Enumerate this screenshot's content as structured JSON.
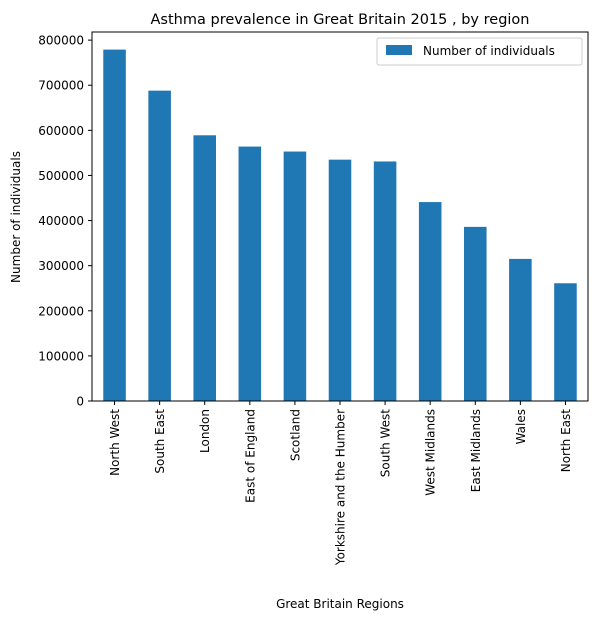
{
  "chart_data": {
    "type": "bar",
    "title": "Asthma prevalence in Great Britain 2015 , by region",
    "xlabel": "Great Britain Regions",
    "ylabel": "Number of individuals",
    "categories": [
      "North West",
      "South East",
      "London",
      "East of England",
      "Scotland",
      "Yorkshire and the Humber",
      "South West",
      "West Midlands",
      "East Midlands",
      "Wales",
      "North East"
    ],
    "series": [
      {
        "name": "Number of individuals",
        "values": [
          779000,
          688000,
          589000,
          564000,
          553000,
          535000,
          531000,
          441000,
          386000,
          315000,
          261000
        ],
        "color": "#1f77b4"
      }
    ],
    "ylim": [
      0,
      818000
    ],
    "yticks": [
      0,
      100000,
      200000,
      300000,
      400000,
      500000,
      600000,
      700000,
      800000
    ],
    "ytick_labels": [
      "0",
      "100000",
      "200000",
      "300000",
      "400000",
      "500000",
      "600000",
      "700000",
      "800000"
    ],
    "grid": false,
    "legend_position": "top-right"
  }
}
